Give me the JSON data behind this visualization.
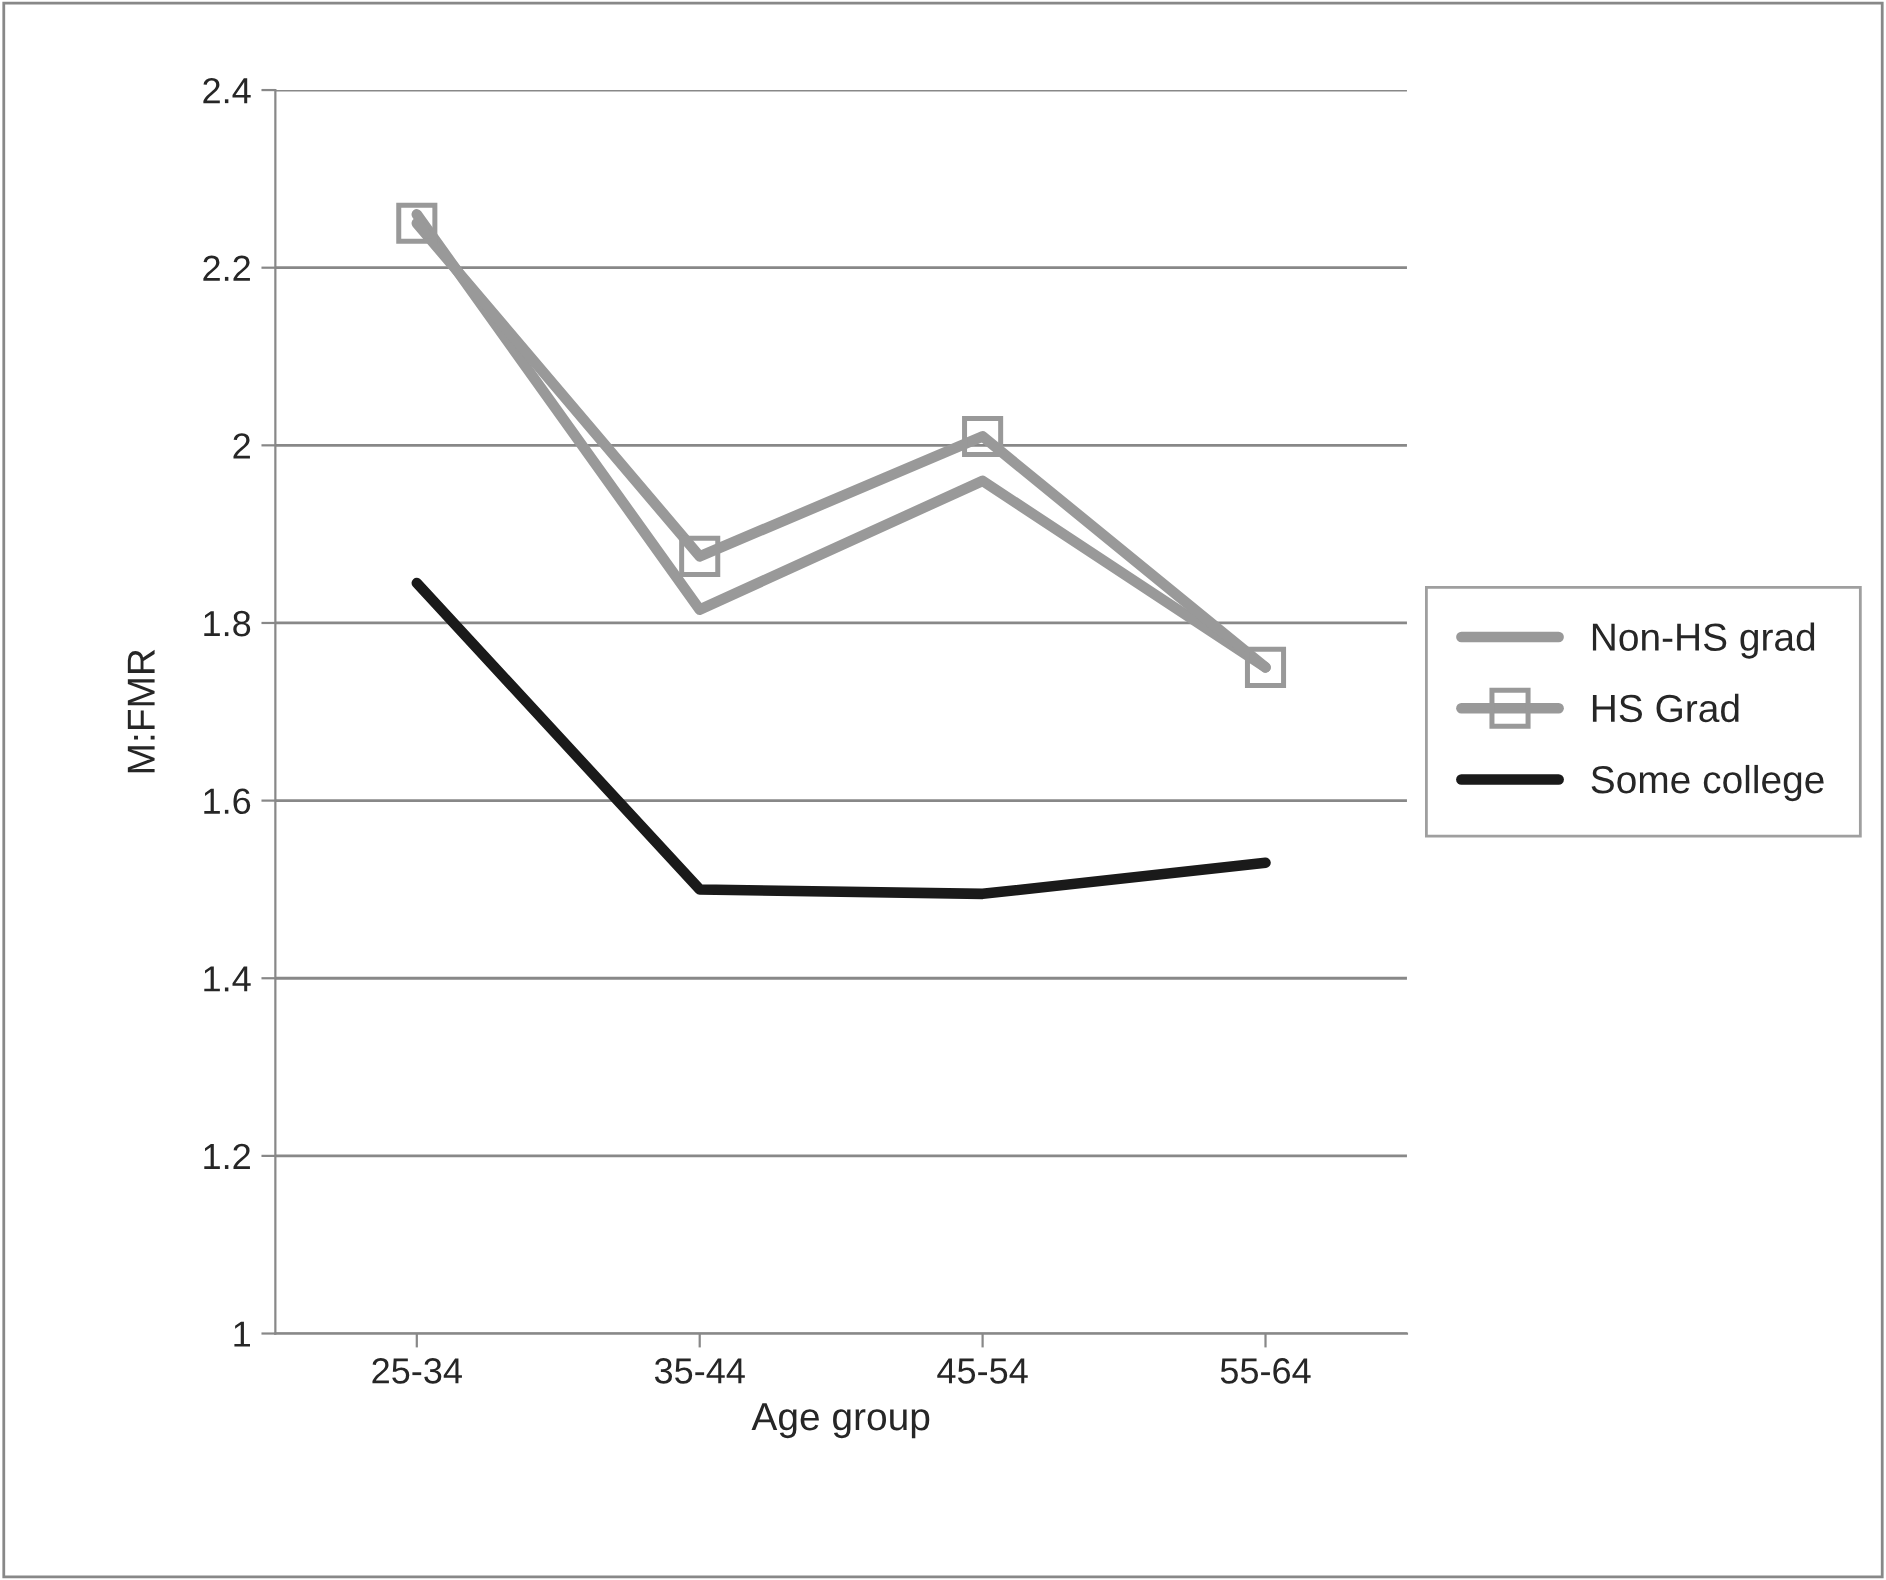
{
  "chart_data": {
    "type": "line",
    "xlabel": "Age group",
    "ylabel": "M:FMR",
    "categories": [
      "25-34",
      "35-44",
      "45-54",
      "55-64"
    ],
    "series": [
      {
        "name": "Non-HS grad",
        "color": "#999999",
        "marker": "none",
        "values": [
          2.26,
          1.815,
          1.96,
          1.75
        ]
      },
      {
        "name": "HS Grad",
        "color": "#999999",
        "marker": "square",
        "values": [
          2.25,
          1.875,
          2.01,
          1.75
        ]
      },
      {
        "name": "Some college",
        "color": "#1a1a1a",
        "marker": "none",
        "values": [
          1.845,
          1.5,
          1.495,
          1.53
        ]
      }
    ],
    "ylim": [
      1,
      2.4
    ],
    "yticks": [
      1,
      1.2,
      1.4,
      1.6,
      1.8,
      2,
      2.2,
      2.4
    ],
    "grid": "y",
    "legend": "right"
  }
}
